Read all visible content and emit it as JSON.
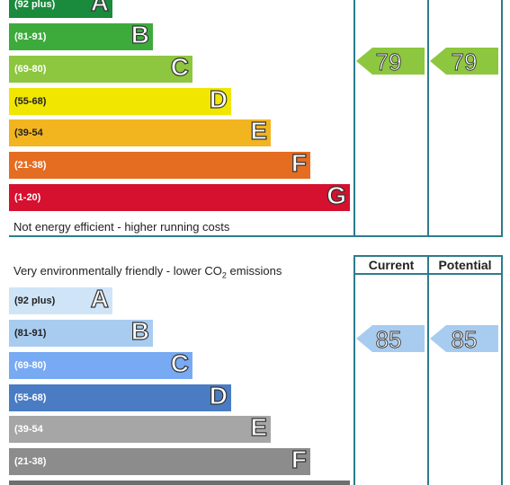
{
  "energy": {
    "bands": [
      {
        "range": "(92 plus)",
        "letter": "A",
        "color": "#1a8a3c"
      },
      {
        "range": "(81-91)",
        "letter": "B",
        "color": "#3cab3c"
      },
      {
        "range": "(69-80)",
        "letter": "C",
        "color": "#8dc63f"
      },
      {
        "range": "(55-68)",
        "letter": "D",
        "color": "#f0e600"
      },
      {
        "range": "(39-54",
        "letter": "E",
        "color": "#f2b51f"
      },
      {
        "range": "(21-38)",
        "letter": "F",
        "color": "#e46d22"
      },
      {
        "range": "(1-20)",
        "letter": "G",
        "color": "#d6102f"
      }
    ],
    "footer_caption": "Not energy efficient - higher running costs",
    "current": {
      "value": "79",
      "color": "#8dc63f"
    },
    "potential": {
      "value": "79",
      "color": "#8dc63f"
    }
  },
  "environment": {
    "header_caption_prefix": "Very environmentally friendly - lower CO",
    "header_caption_sub": "2",
    "header_caption_suffix": " emissions",
    "column_current": "Current",
    "column_potential": "Potential",
    "bands": [
      {
        "range": "(92 plus)",
        "letter": "A",
        "color": "#cfe4f7"
      },
      {
        "range": "(81-91)",
        "letter": "B",
        "color": "#a8ccf0"
      },
      {
        "range": "(69-80)",
        "letter": "C",
        "color": "#77aaf2"
      },
      {
        "range": "(55-68)",
        "letter": "D",
        "color": "#4a7cc4"
      },
      {
        "range": "(39-54",
        "letter": "E",
        "color": "#a6a6a6"
      },
      {
        "range": "(21-38)",
        "letter": "F",
        "color": "#8c8c8c"
      }
    ],
    "current": {
      "value": "85",
      "color": "#a8ccf0"
    },
    "potential": {
      "value": "85",
      "color": "#a8ccf0"
    }
  }
}
